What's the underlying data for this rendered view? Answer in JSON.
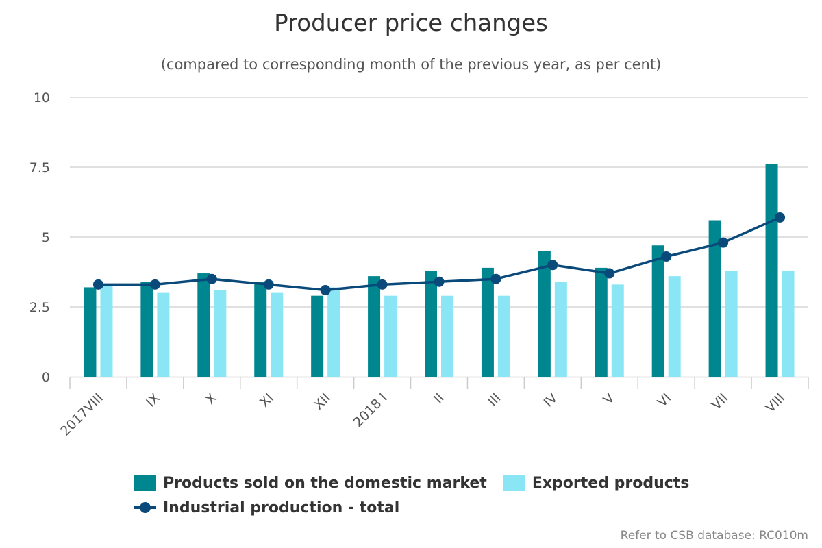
{
  "title": "Producer price changes",
  "subtitle": "(compared to corresponding month of the previous year, as per cent)",
  "source": "Refer to CSB database: RC010m",
  "colors": {
    "domestic": "#00868f",
    "exported": "#8ae6f4",
    "total": "#0a4a7a",
    "grid": "#d6d6d6",
    "axis": "#cccccc"
  },
  "legend": {
    "domestic": "Products sold on the domestic market",
    "exported": "Exported products",
    "total": "Industrial production - total"
  },
  "chart_data": {
    "type": "bar",
    "title": "Producer price changes",
    "subtitle": "(compared to corresponding month of the previous year, as per cent)",
    "categories": [
      "2017VIII",
      "IX",
      "X",
      "XI",
      "XII",
      "2018 I",
      "II",
      "III",
      "IV",
      "V",
      "VI",
      "VII",
      "VIII"
    ],
    "yticks": [
      "0",
      "2.5",
      "5",
      "7.5",
      "10"
    ],
    "ylim": [
      0,
      10
    ],
    "grid": true,
    "legend_position": "bottom",
    "series": [
      {
        "name": "Products sold on the domestic market",
        "type": "bar",
        "values": [
          3.2,
          3.4,
          3.7,
          3.4,
          2.9,
          3.6,
          3.8,
          3.9,
          4.5,
          3.9,
          4.7,
          5.6,
          7.6
        ]
      },
      {
        "name": "Exported products",
        "type": "bar",
        "values": [
          3.3,
          3.0,
          3.1,
          3.0,
          3.2,
          2.9,
          2.9,
          2.9,
          3.4,
          3.3,
          3.6,
          3.8,
          3.8
        ]
      },
      {
        "name": "Industrial production - total",
        "type": "line",
        "values": [
          3.3,
          3.3,
          3.5,
          3.3,
          3.1,
          3.3,
          3.4,
          3.5,
          4.0,
          3.7,
          4.3,
          4.8,
          5.7
        ]
      }
    ]
  }
}
